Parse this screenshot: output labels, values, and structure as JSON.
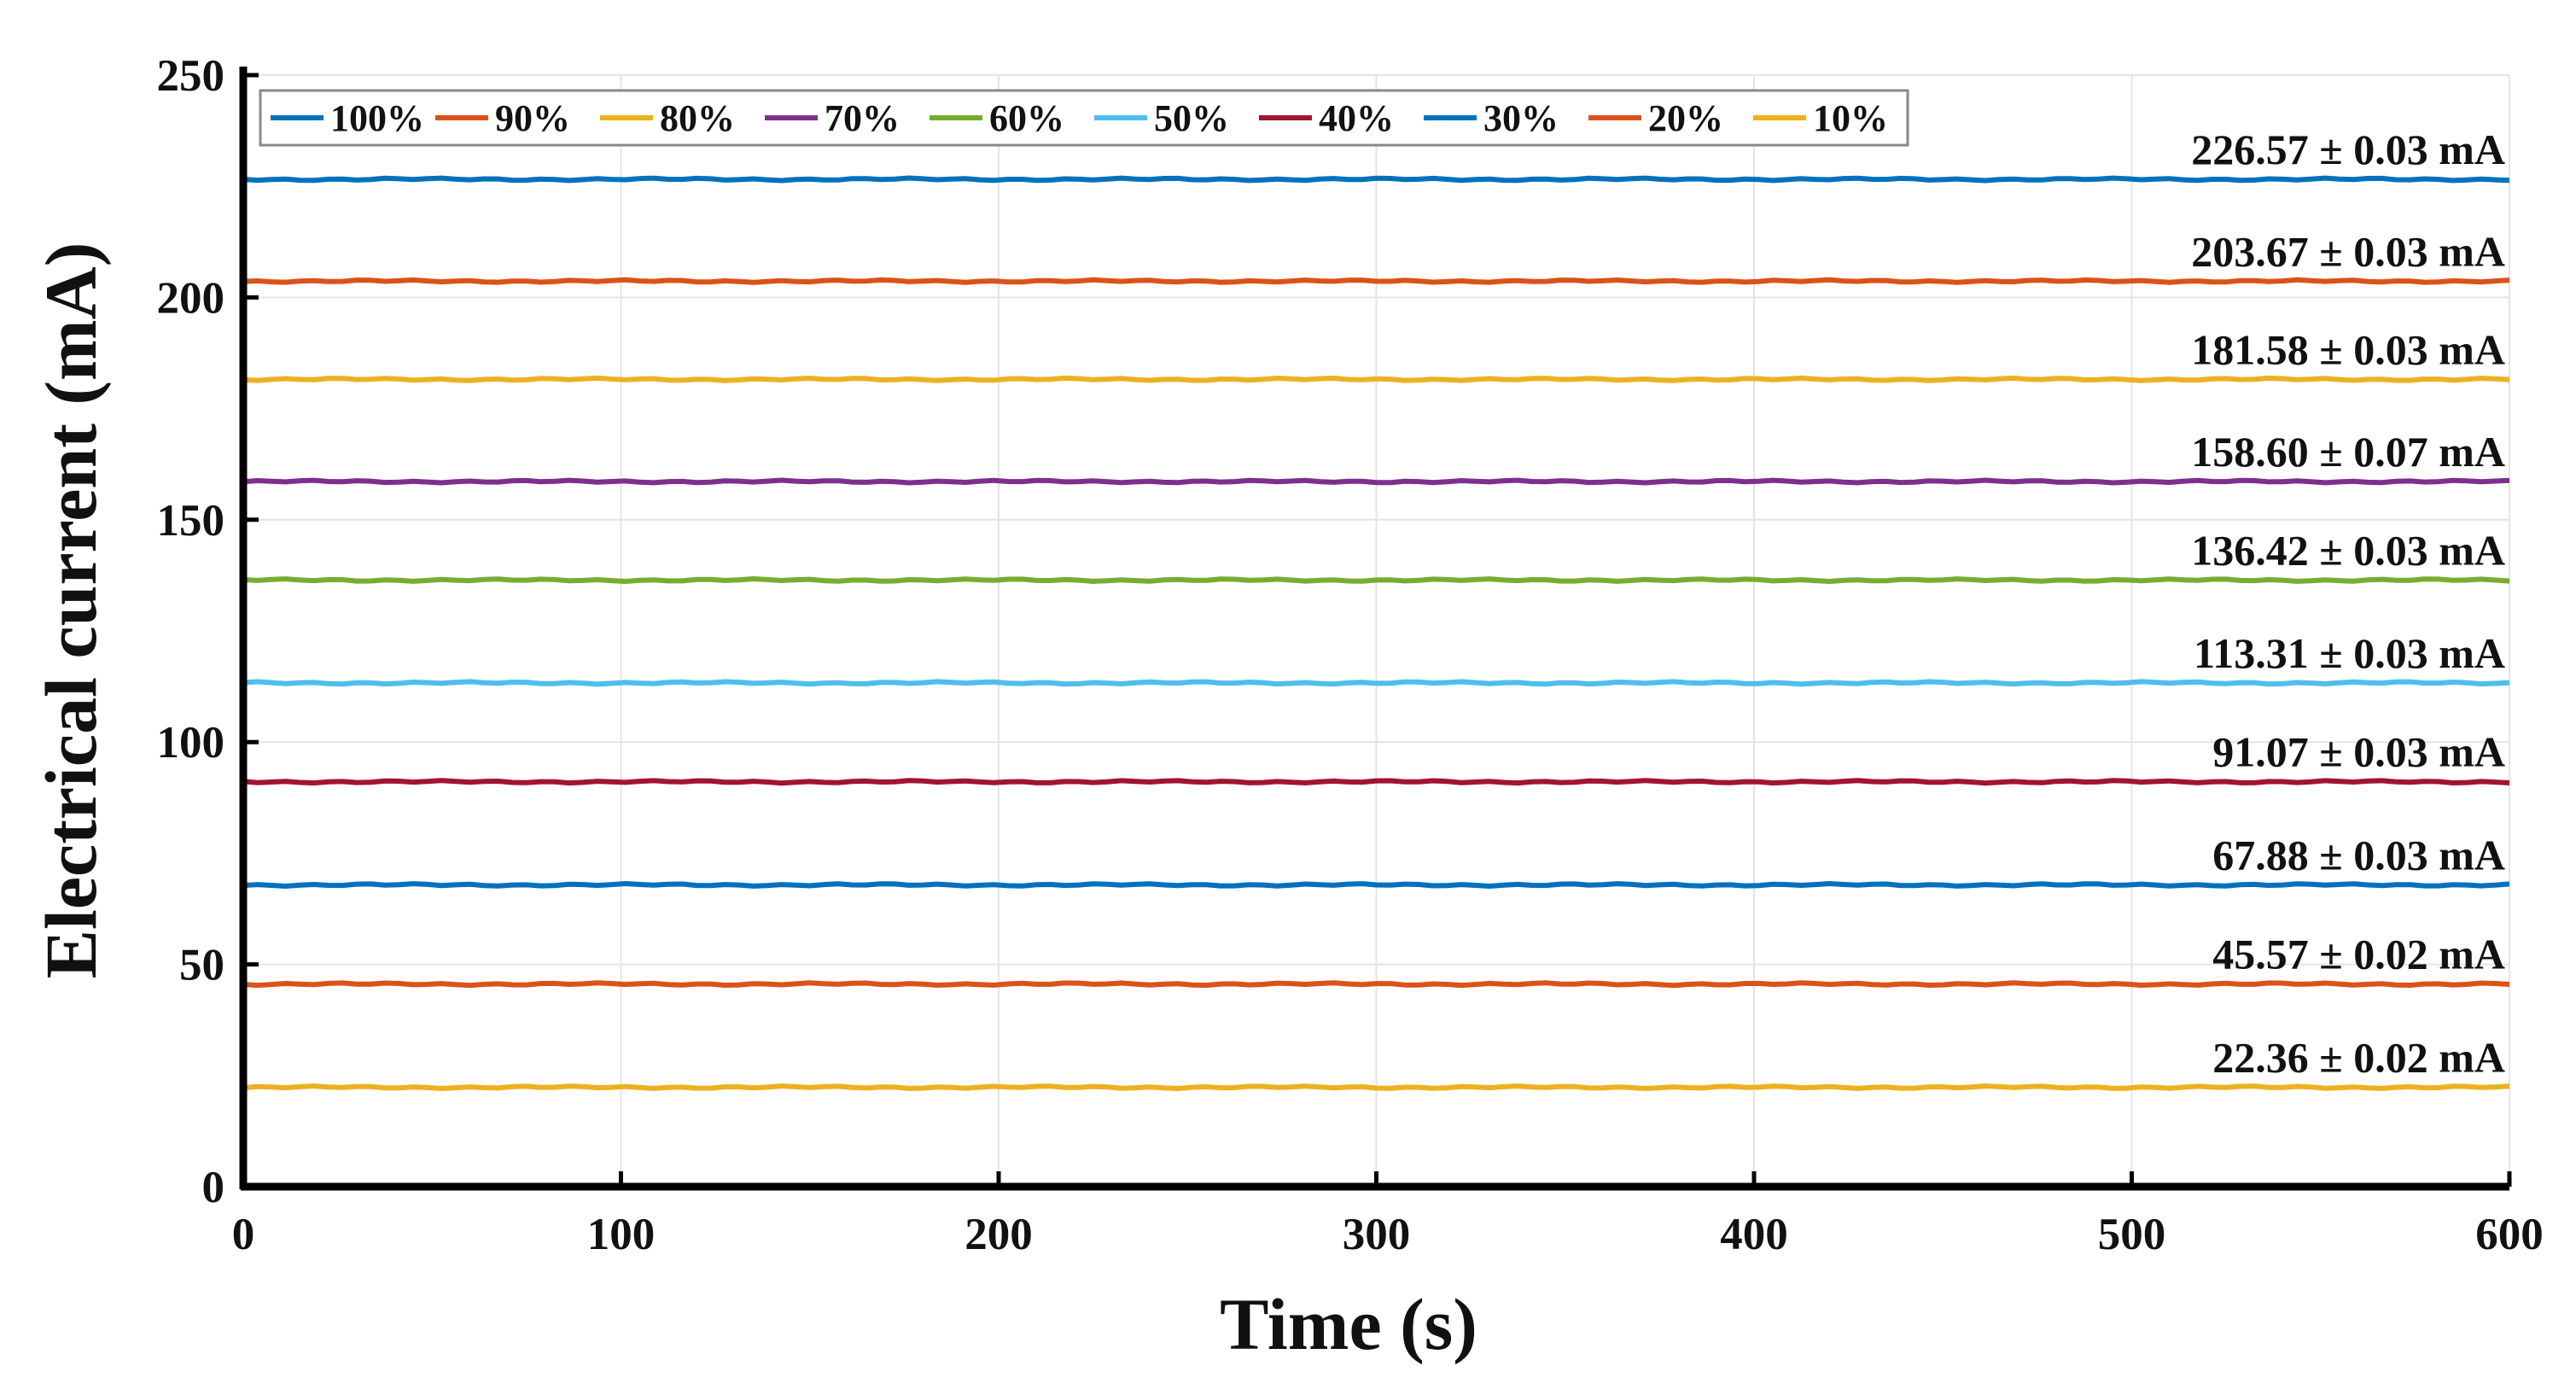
{
  "chart_data": {
    "type": "line",
    "title": "",
    "xlabel": "Time (s)",
    "ylabel": "Electrical current (mA)",
    "xlim": [
      0,
      600
    ],
    "ylim": [
      0,
      250
    ],
    "xticks": [
      0,
      100,
      200,
      300,
      400,
      500,
      600
    ],
    "yticks": [
      0,
      50,
      100,
      150,
      200,
      250
    ],
    "grid": true,
    "legend_position": "top-left",
    "x": [
      0,
      600
    ],
    "series": [
      {
        "name": "100%",
        "color": "#0072BD",
        "values": [
          226.57,
          226.57
        ],
        "annotation": "226.57 ± 0.03 mA"
      },
      {
        "name": "90%",
        "color": "#D95319",
        "values": [
          203.67,
          203.67
        ],
        "annotation": "203.67 ± 0.03 mA"
      },
      {
        "name": "80%",
        "color": "#EDB120",
        "values": [
          181.58,
          181.58
        ],
        "annotation": "181.58 ±  0.03 mA"
      },
      {
        "name": "70%",
        "color": "#7E2F8E",
        "values": [
          158.6,
          158.6
        ],
        "annotation": "158.60 ± 0.07 mA"
      },
      {
        "name": "60%",
        "color": "#77AC30",
        "values": [
          136.42,
          136.42
        ],
        "annotation": "136.42 ± 0.03 mA"
      },
      {
        "name": "50%",
        "color": "#4DBEEE",
        "values": [
          113.31,
          113.31
        ],
        "annotation": "113.31 ± 0.03 mA"
      },
      {
        "name": "40%",
        "color": "#A2142F",
        "values": [
          91.07,
          91.07
        ],
        "annotation": "91.07 ± 0.03 mA"
      },
      {
        "name": "30%",
        "color": "#0072BD",
        "values": [
          67.88,
          67.88
        ],
        "annotation": "67.88 ± 0.03 mA"
      },
      {
        "name": "20%",
        "color": "#D95319",
        "values": [
          45.57,
          45.57
        ],
        "annotation": "45.57 ± 0.02 mA"
      },
      {
        "name": "10%",
        "color": "#EDB120",
        "values": [
          22.36,
          22.36
        ],
        "annotation": "22.36 ± 0.02 mA"
      }
    ]
  }
}
